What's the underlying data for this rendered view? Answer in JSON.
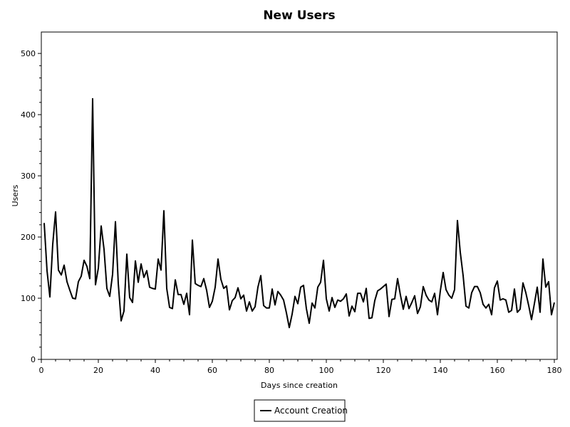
{
  "chart_data": {
    "type": "line",
    "title": "New Users",
    "xlabel": "Days since creation",
    "ylabel": "Users",
    "xlim": [
      0,
      181
    ],
    "ylim": [
      0,
      535
    ],
    "xticks": [
      0,
      20,
      40,
      60,
      80,
      100,
      120,
      140,
      160,
      180
    ],
    "yticks": [
      0,
      100,
      200,
      300,
      400,
      500
    ],
    "grid": false,
    "legend": "bottom-center",
    "series": [
      {
        "name": "Account Creation",
        "color": "#000000",
        "x_start": 1,
        "x_step": 1,
        "values": [
          223,
          145,
          102,
          188,
          241,
          146,
          138,
          154,
          127,
          113,
          100,
          99,
          127,
          136,
          162,
          152,
          132,
          426,
          122,
          149,
          218,
          180,
          116,
          103,
          139,
          225,
          124,
          63,
          79,
          172,
          101,
          93,
          161,
          126,
          156,
          134,
          145,
          118,
          116,
          115,
          164,
          146,
          243,
          116,
          85,
          83,
          130,
          106,
          106,
          90,
          108,
          73,
          195,
          124,
          121,
          119,
          132,
          113,
          85,
          95,
          118,
          164,
          131,
          116,
          120,
          81,
          96,
          101,
          117,
          99,
          105,
          79,
          94,
          79,
          86,
          118,
          137,
          88,
          84,
          84,
          115,
          89,
          111,
          105,
          97,
          76,
          52,
          74,
          103,
          91,
          118,
          121,
          83,
          59,
          92,
          84,
          118,
          126,
          162,
          99,
          79,
          101,
          85,
          97,
          95,
          99,
          107,
          71,
          87,
          78,
          108,
          108,
          94,
          116,
          67,
          68,
          96,
          112,
          115,
          119,
          123,
          70,
          98,
          99,
          132,
          105,
          82,
          103,
          83,
          93,
          104,
          75,
          86,
          119,
          105,
          97,
          94,
          108,
          73,
          112,
          142,
          114,
          105,
          100,
          114,
          227,
          175,
          137,
          87,
          84,
          109,
          119,
          119,
          109,
          90,
          84,
          90,
          73,
          117,
          128,
          97,
          99,
          97,
          77,
          80,
          115,
          77,
          82,
          125,
          109,
          88,
          65,
          91,
          118,
          77,
          164,
          118,
          127,
          73,
          93
        ]
      }
    ]
  }
}
